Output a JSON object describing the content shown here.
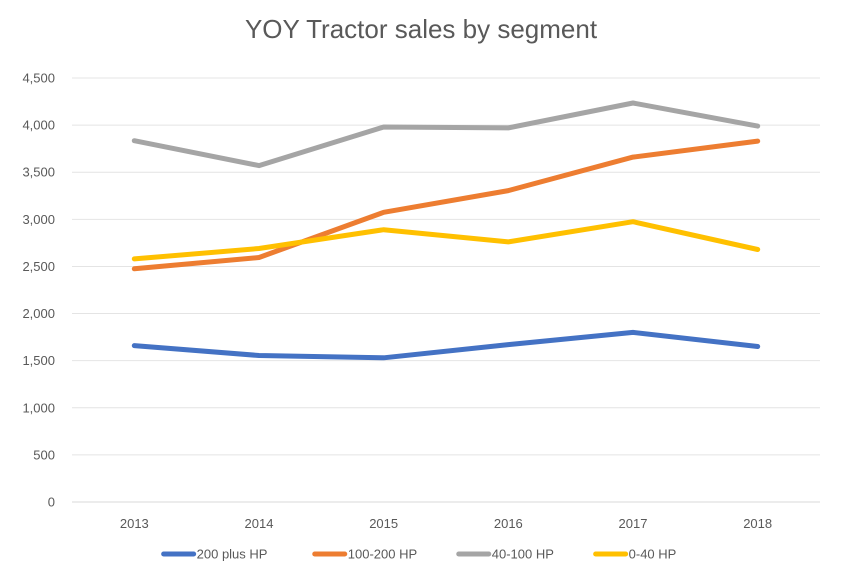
{
  "chart_data": {
    "type": "line",
    "title": "YOY Tractor sales by segment",
    "xlabel": "",
    "ylabel": "",
    "categories": [
      "2013",
      "2014",
      "2015",
      "2016",
      "2017",
      "2018"
    ],
    "ylim": [
      0,
      4500
    ],
    "yticks": [
      0,
      500,
      1000,
      1500,
      2000,
      2500,
      3000,
      3500,
      4000,
      4500
    ],
    "ytick_labels": [
      "0",
      "500",
      "1,000",
      "1,500",
      "2,000",
      "2,500",
      "3,000",
      "3,500",
      "4,000",
      "4,500"
    ],
    "grid": true,
    "legend_position": "bottom",
    "series": [
      {
        "name": "200 plus HP",
        "color": "#4472C4",
        "values": [
          1660,
          1555,
          1530,
          1670,
          1800,
          1650
        ]
      },
      {
        "name": "100-200 HP",
        "color": "#ED7D31",
        "values": [
          2475,
          2595,
          3075,
          3305,
          3660,
          3830
        ]
      },
      {
        "name": "40-100 HP",
        "color": "#A5A5A5",
        "values": [
          3835,
          3570,
          3980,
          3970,
          4235,
          3990
        ]
      },
      {
        "name": "0-40 HP",
        "color": "#FFC000",
        "values": [
          2580,
          2690,
          2890,
          2760,
          2975,
          2680
        ]
      }
    ]
  }
}
